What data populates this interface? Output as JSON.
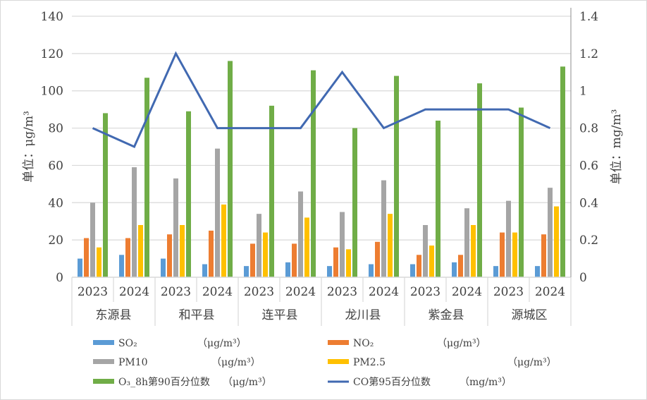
{
  "chart_data": {
    "type": "bar",
    "title": "",
    "ylabel": "单位：μg/m³",
    "y2label": "单位：mg/m³",
    "ylim": [
      0,
      140
    ],
    "y2lim": [
      0,
      1.4
    ],
    "yticks": [
      "0",
      "20",
      "40",
      "60",
      "80",
      "100",
      "120",
      "140"
    ],
    "y2ticks": [
      "0",
      "0.2",
      "0.4",
      "0.6",
      "0.8",
      "1",
      "1.2",
      "1.4"
    ],
    "grid": true,
    "legend_position": "bottom",
    "groups": [
      "东源县",
      "和平县",
      "连平县",
      "龙川县",
      "紫金县",
      "源城区"
    ],
    "categories": [
      "2023",
      "2024",
      "2023",
      "2024",
      "2023",
      "2024",
      "2023",
      "2024",
      "2023",
      "2024",
      "2023",
      "2024"
    ],
    "series": [
      {
        "name": "SO₂",
        "unit": "（μg/m³）",
        "type": "bar",
        "axis": "left",
        "color": "#5b9bd5",
        "values": [
          10,
          12,
          10,
          7,
          6,
          8,
          6,
          7,
          7,
          8,
          6,
          6
        ]
      },
      {
        "name": "NO₂",
        "unit": "（μg/m³）",
        "type": "bar",
        "axis": "left",
        "color": "#ed7d31",
        "values": [
          21,
          21,
          23,
          25,
          18,
          18,
          16,
          19,
          12,
          12,
          24,
          23
        ]
      },
      {
        "name": "PM10",
        "unit": "（μg/m³）",
        "type": "bar",
        "axis": "left",
        "color": "#a5a5a5",
        "values": [
          40,
          59,
          53,
          69,
          34,
          46,
          35,
          52,
          28,
          37,
          41,
          48
        ]
      },
      {
        "name": "PM2.5",
        "unit": "（μg/m³）",
        "type": "bar",
        "axis": "left",
        "color": "#ffc000",
        "values": [
          16,
          28,
          28,
          39,
          24,
          32,
          15,
          34,
          17,
          28,
          24,
          38
        ]
      },
      {
        "name": "O₃_8h第90百分位数",
        "unit": "（μg/m³）",
        "type": "bar",
        "axis": "left",
        "color": "#70ad47",
        "values": [
          88,
          107,
          89,
          116,
          92,
          111,
          80,
          108,
          84,
          104,
          91,
          113
        ]
      },
      {
        "name": "CO第95百分位数",
        "unit": "（mg/m³）",
        "type": "line",
        "axis": "right",
        "color": "#4169b1",
        "values": [
          0.8,
          0.7,
          1.2,
          0.8,
          0.8,
          0.8,
          1.1,
          0.8,
          0.9,
          0.9,
          0.9,
          0.8
        ]
      }
    ]
  }
}
